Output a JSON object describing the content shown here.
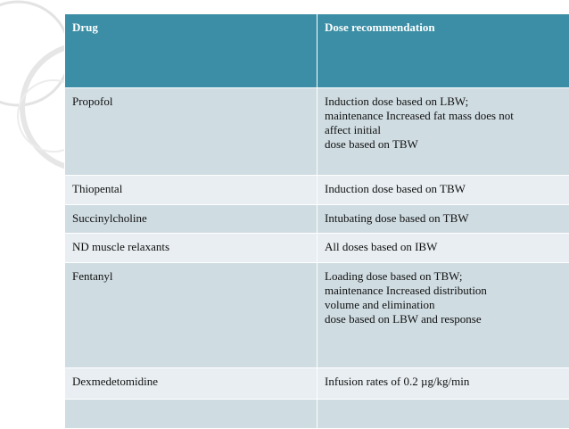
{
  "table": {
    "header": [
      "Drug",
      "Dose recommendation"
    ],
    "rows": [
      [
        [
          "Propofol"
        ],
        [
          "Induction dose based on LBW;",
          "maintenance Increased fat mass does not",
          "affect initial",
          "dose based on TBW"
        ]
      ],
      [
        [
          "Thiopental"
        ],
        [
          "Induction dose based on TBW"
        ]
      ],
      [
        [
          "Succinylcholine"
        ],
        [
          "Intubating dose based on TBW"
        ]
      ],
      [
        [
          "ND muscle relaxants"
        ],
        [
          "All doses based on IBW"
        ]
      ],
      [
        [
          "Fentanyl"
        ],
        [
          "Loading dose based on TBW;",
          "maintenance Increased distribution",
          "volume and elimination",
          "dose based on LBW and response"
        ]
      ],
      [
        [
          "Dexmedetomidine"
        ],
        [
          "Infusion rates of 0.2 µg/kg/min"
        ]
      ]
    ]
  }
}
